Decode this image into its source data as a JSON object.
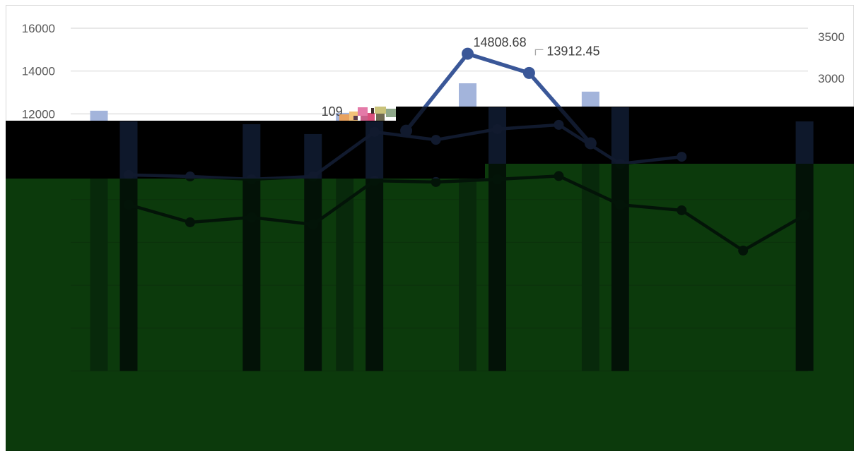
{
  "chart_data": {
    "type": "bar",
    "grid": true,
    "y_left": {
      "ylim": [
        0,
        16000
      ],
      "ticks": [
        16000,
        14000,
        12000
      ]
    },
    "y_right": {
      "ylim": [
        -500,
        3600
      ],
      "ticks": [
        3500,
        3000
      ]
    },
    "bar_series": [
      {
        "color": "#a3b4db",
        "values": [
          12150,
          null,
          null,
          null,
          12050,
          null,
          13430,
          null,
          13040,
          null,
          null,
          null
        ]
      },
      {
        "color": "#2f4f8f",
        "values": [
          11650,
          null,
          11520,
          11060,
          11650,
          null,
          12310,
          null,
          12310,
          null,
          null,
          11650
        ]
      }
    ],
    "line_series": [
      {
        "color": "#3a5798",
        "values": [
          null,
          null,
          null,
          null,
          null,
          11220,
          14808.68,
          13912.45,
          10630,
          null,
          null,
          null
        ]
      },
      {
        "color": "#3a5798",
        "values": [
          9150,
          9080,
          8950,
          9080,
          11160,
          10790,
          11290,
          11490,
          9670,
          10000,
          null,
          null
        ]
      },
      {
        "color": "#3a5798",
        "values": [
          7760,
          6940,
          7170,
          6840,
          8880,
          8820,
          8950,
          9100,
          7760,
          7500,
          5620,
          7270
        ]
      }
    ],
    "data_labels": [
      {
        "line": 0,
        "index": 6,
        "text": "14808.68"
      },
      {
        "line": 0,
        "index": 7,
        "text": "13912.45"
      },
      {
        "line": 0,
        "index": 4,
        "text": "109"
      }
    ]
  },
  "colors": {
    "gridline": "#d9d9d9",
    "leader_line": "#a6a6a6"
  }
}
